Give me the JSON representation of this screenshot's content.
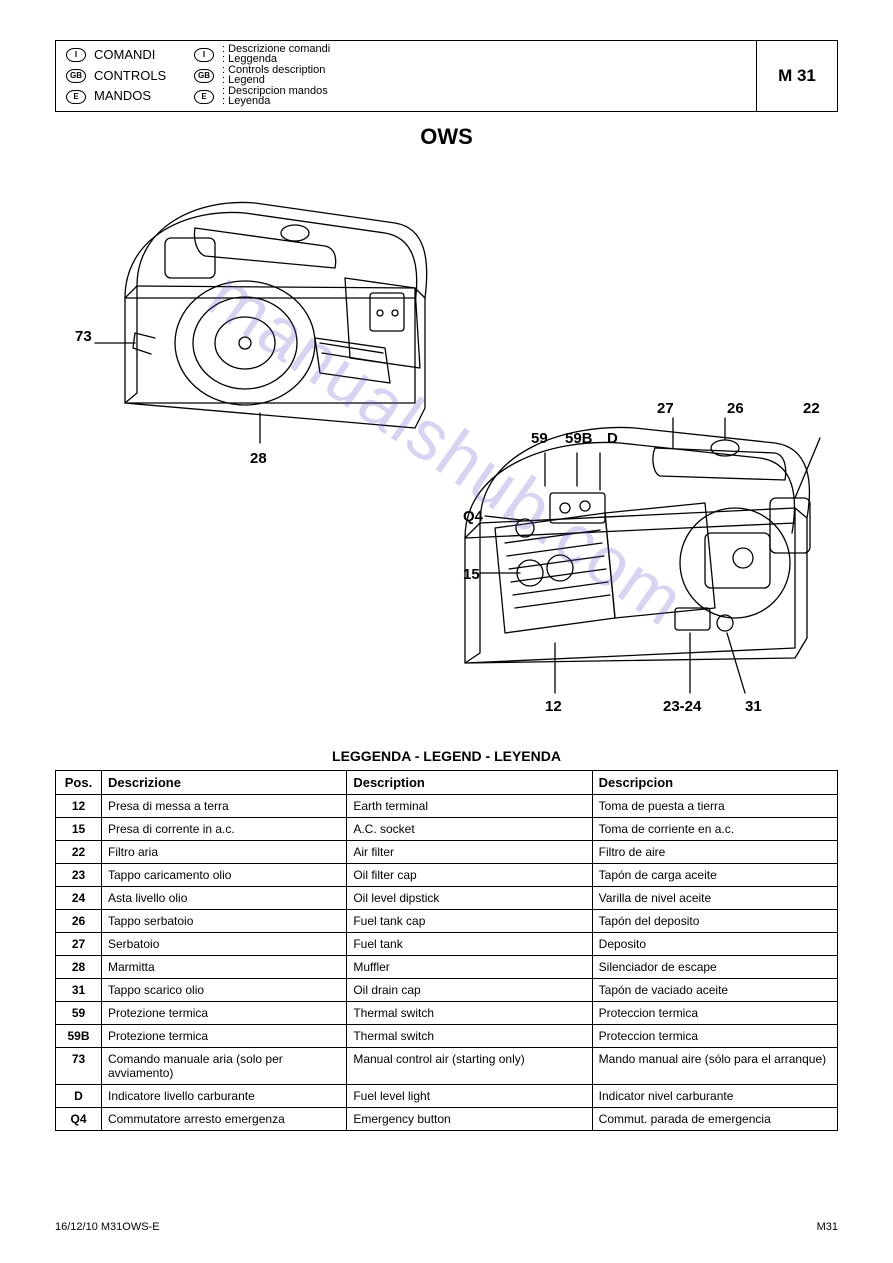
{
  "header": {
    "badges": [
      "I",
      "GB",
      "E"
    ],
    "left_lines": [
      "COMANDI",
      "CONTROLS",
      "MANDOS"
    ],
    "right_lines": [
      [
        ": Descrizione comandi",
        ": Leggenda"
      ],
      [
        ": Controls description",
        ": Legend"
      ],
      [
        ": Descripcion mandos",
        ": Leyenda"
      ]
    ],
    "short_code": "M 31"
  },
  "title": "OWS",
  "callouts": {
    "c73": "73",
    "c28": "28",
    "c59": "59",
    "c59B": "59B",
    "cD": "D",
    "cQ4": "Q4",
    "c15": "15",
    "c12": "12",
    "c23_24": "23-24",
    "c31": "31",
    "c27": "27",
    "c26": "26",
    "c22": "22"
  },
  "watermark": "manualshub.com",
  "legend_title": "LEGGENDA - LEGEND - LEYENDA",
  "legend": {
    "columns": [
      "Pos.",
      "Descrizione",
      "Description",
      "Descripcion"
    ],
    "rows": [
      [
        "12",
        "Presa di messa a terra",
        "Earth terminal",
        "Toma de puesta a tierra"
      ],
      [
        "15",
        "Presa di corrente in a.c.",
        "A.C. socket",
        "Toma de corriente en a.c."
      ],
      [
        "22",
        "Filtro aria",
        "Air filter",
        "Filtro de aire"
      ],
      [
        "23",
        "Tappo caricamento olio",
        "Oil filter cap",
        "Tapón de carga aceite"
      ],
      [
        "24",
        "Asta livello olio",
        "Oil level dipstick",
        "Varilla de nivel aceite"
      ],
      [
        "26",
        "Tappo serbatoio",
        "Fuel tank cap",
        "Tapón del deposito"
      ],
      [
        "27",
        "Serbatoio",
        "Fuel tank",
        "Deposito"
      ],
      [
        "28",
        "Marmitta",
        "Muffler",
        "Silenciador de escape"
      ],
      [
        "31",
        "Tappo scarico olio",
        "Oil drain cap",
        "Tapón de vaciado aceite"
      ],
      [
        "59",
        "Protezione termica",
        "Thermal switch",
        "Proteccion termica"
      ],
      [
        "59B",
        "Protezione termica",
        "Thermal switch",
        "Proteccion termica"
      ],
      [
        "73",
        "Comando manuale aria (solo per avviamento)",
        "Manual control air (starting only)",
        "Mando manual aire (sólo para el arranque)"
      ],
      [
        "D",
        "Indicatore livello carburante",
        "Fuel level light",
        "Indicator nivel carburante"
      ],
      [
        "Q4",
        "Commutatore arresto emergenza",
        "Emergency button",
        "Commut. parada de emergencia"
      ]
    ]
  },
  "footer": {
    "left": "16/12/10 M31OWS-E",
    "right": "M31"
  },
  "colors": {
    "stroke": "#000000",
    "background": "#ffffff",
    "watermark": "rgba(100,80,200,0.25)"
  }
}
